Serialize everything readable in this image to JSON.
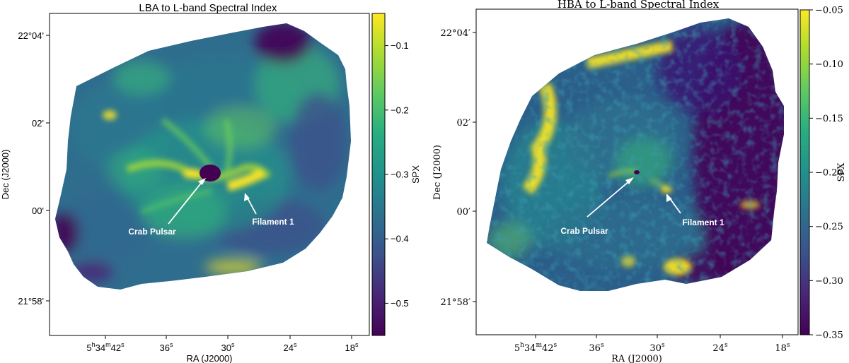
{
  "chart_data": [
    {
      "type": "heatmap",
      "title": "LBA to L-band Spectral Index",
      "xlabel": "RA (J2000)",
      "ylabel": "Dec (J2000)",
      "x_ticks": [
        {
          "label": "5",
          "h": "h",
          "m": "34",
          "mm": "m",
          "s": "42",
          "ss": "s"
        },
        {
          "label": "36",
          "ss": "s"
        },
        {
          "label": "30",
          "ss": "s"
        },
        {
          "label": "24",
          "ss": "s"
        },
        {
          "label": "18",
          "ss": "s"
        }
      ],
      "y_ticks": [
        "22°04'",
        "02'",
        "00'",
        "21°58'"
      ],
      "colorbar": {
        "label": "SPX",
        "range": [
          -0.55,
          -0.05
        ],
        "ticks": [
          "−0.1",
          "−0.2",
          "−0.3",
          "−0.4",
          "−0.5"
        ],
        "tick_values": [
          -0.1,
          -0.2,
          -0.3,
          -0.4,
          -0.5
        ],
        "colormap": "viridis"
      },
      "annotations": [
        {
          "text": "Crab Pulsar"
        },
        {
          "text": "Filament 1"
        }
      ]
    },
    {
      "type": "heatmap",
      "title": "HBA to L-band Spectral Index",
      "xlabel": "RA (J2000)",
      "ylabel": "Dec (J2000)",
      "x_ticks": [
        {
          "label": "5",
          "h": "h",
          "m": "34",
          "mm": "m",
          "s": "42",
          "ss": "s"
        },
        {
          "label": "36",
          "ss": "s"
        },
        {
          "label": "30",
          "ss": "s"
        },
        {
          "label": "24",
          "ss": "s"
        },
        {
          "label": "18",
          "ss": "s"
        }
      ],
      "y_ticks": [
        "22°04′",
        "02′",
        "00′",
        "21°58′"
      ],
      "colorbar": {
        "label": "SPX",
        "range": [
          -0.35,
          -0.05
        ],
        "ticks": [
          "−0.05",
          "−0.10",
          "−0.15",
          "−0.20",
          "−0.25",
          "−0.30",
          "−0.35"
        ],
        "tick_values": [
          -0.05,
          -0.1,
          -0.15,
          -0.2,
          -0.25,
          -0.3,
          -0.35
        ],
        "colormap": "viridis"
      },
      "annotations": [
        {
          "text": "Crab Pulsar"
        },
        {
          "text": "Filament 1"
        }
      ]
    }
  ],
  "colors": {
    "viridis_0": "#440154",
    "viridis_25": "#3b528b",
    "viridis_50": "#21918c",
    "viridis_75": "#5ec962",
    "viridis_100": "#fde725",
    "nebula_mid": "#2f6d8e",
    "annotation": "#ffffff"
  }
}
